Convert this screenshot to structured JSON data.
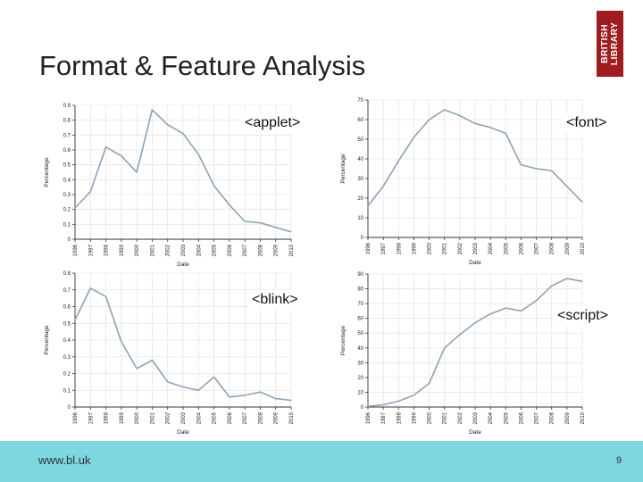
{
  "slide": {
    "title": "Format & Feature Analysis",
    "logo_lines": [
      "BRITISH",
      "LIBRARY"
    ],
    "footer_url": "www.bl.uk",
    "page_number": "9"
  },
  "colors": {
    "line": "#8ea2b6",
    "logo": "#9f1c20",
    "footer": "#7dd7e1"
  },
  "chart_data": [
    {
      "type": "line",
      "tag": "<applet>",
      "xlabel": "Date",
      "ylabel": "Percentage",
      "categories": [
        "1996",
        "1997",
        "1998",
        "1999",
        "2000",
        "2001",
        "2002",
        "2003",
        "2004",
        "2005",
        "2006",
        "2007",
        "2008",
        "2009",
        "2010"
      ],
      "values": [
        0.21,
        0.32,
        0.62,
        0.56,
        0.45,
        0.87,
        0.77,
        0.71,
        0.57,
        0.36,
        0.23,
        0.12,
        0.11,
        0.08,
        0.05
      ],
      "ylim": [
        0,
        0.9
      ],
      "yticks": [
        "0",
        "0.1",
        "0.2",
        "0.3",
        "0.4",
        "0.5",
        "0.6",
        "0.7",
        "0.8",
        "0.9"
      ],
      "grid": true
    },
    {
      "type": "line",
      "tag": "<font>",
      "xlabel": "Date",
      "ylabel": "Percentage",
      "categories": [
        "1996",
        "1997",
        "1998",
        "1999",
        "2000",
        "2001",
        "2002",
        "2003",
        "2004",
        "2005",
        "2006",
        "2007",
        "2008",
        "2009",
        "2010"
      ],
      "values": [
        16,
        26,
        39,
        51,
        60,
        65,
        62,
        58,
        56,
        53,
        37,
        35,
        34,
        26,
        18
      ],
      "ylim": [
        0,
        70
      ],
      "yticks": [
        "0",
        "10",
        "20",
        "30",
        "40",
        "50",
        "60",
        "70"
      ],
      "grid": true
    },
    {
      "type": "line",
      "tag": "<blink>",
      "xlabel": "Date",
      "ylabel": "Percentage",
      "categories": [
        "1996",
        "1997",
        "1998",
        "1999",
        "2000",
        "2001",
        "2002",
        "2003",
        "2004",
        "2005",
        "2006",
        "2007",
        "2008",
        "2009",
        "2010"
      ],
      "values": [
        0.52,
        0.71,
        0.66,
        0.39,
        0.23,
        0.28,
        0.15,
        0.12,
        0.1,
        0.18,
        0.06,
        0.07,
        0.09,
        0.05,
        0.04
      ],
      "ylim": [
        0,
        0.8
      ],
      "yticks": [
        "0",
        "0.1",
        "0.2",
        "0.3",
        "0.4",
        "0.5",
        "0.6",
        "0.7",
        "0.8"
      ],
      "grid": true
    },
    {
      "type": "line",
      "tag": "<script>",
      "xlabel": "Date",
      "ylabel": "Percentage",
      "categories": [
        "1996",
        "1997",
        "1998",
        "1999",
        "2000",
        "2001",
        "2002",
        "2003",
        "2004",
        "2005",
        "2006",
        "2007",
        "2008",
        "2009",
        "2010"
      ],
      "values": [
        0.5,
        1.5,
        4,
        8,
        16,
        40,
        49,
        57,
        63,
        67,
        65,
        72,
        82,
        87,
        85
      ],
      "ylim": [
        0,
        90
      ],
      "yticks": [
        "0",
        "10",
        "20",
        "30",
        "40",
        "50",
        "60",
        "70",
        "80",
        "90"
      ],
      "grid": true
    }
  ]
}
